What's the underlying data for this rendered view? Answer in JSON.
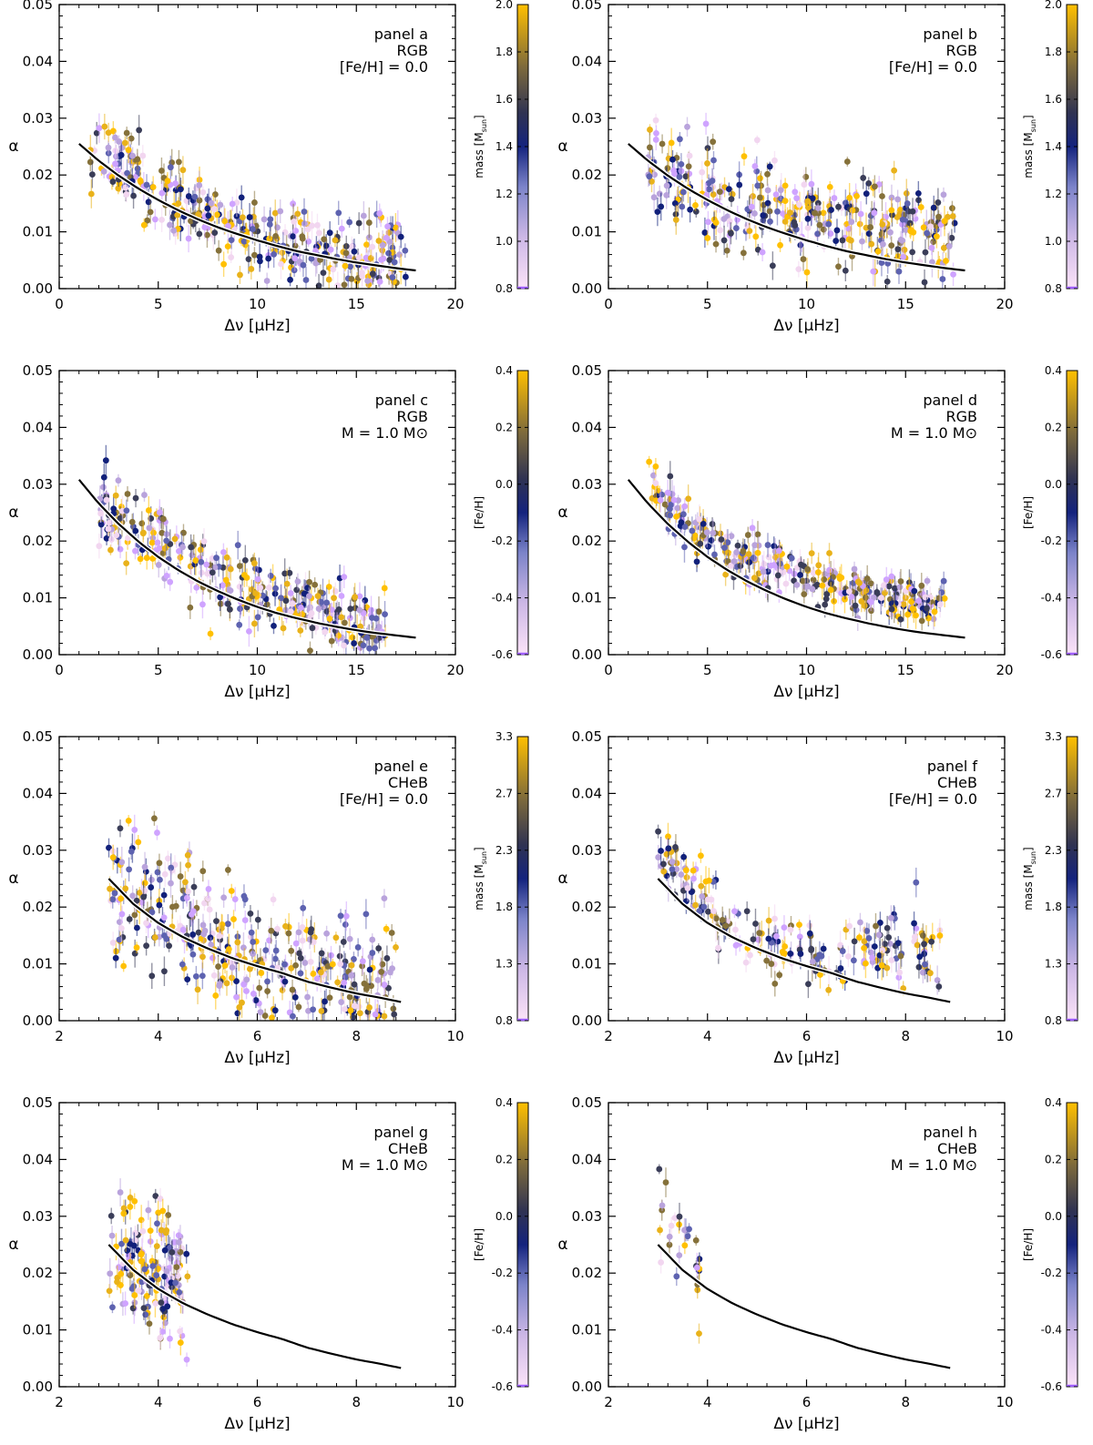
{
  "figure": {
    "colorscales": {
      "mass_low": {
        "label": "mass [M",
        "label_sub": "sun",
        "label_close": "]",
        "ticks": [
          "0.8",
          "1.0",
          "1.2",
          "1.4",
          "1.6",
          "1.8",
          "2.0"
        ],
        "min": 0.8,
        "max": 2.0
      },
      "mass_high": {
        "label": "mass [M",
        "label_sub": "sun",
        "label_close": "]",
        "ticks": [
          "0.8",
          "1.3",
          "1.8",
          "2.3",
          "2.7",
          "3.3"
        ],
        "min": 0.8,
        "max": 3.3
      },
      "feh": {
        "label": "[Fe/H]",
        "label_sub": "",
        "label_close": "",
        "ticks": [
          "-0.6",
          "-0.4",
          "-0.2",
          "0.0",
          "0.2",
          "0.4"
        ],
        "min": -0.6,
        "max": 0.4
      }
    },
    "colors": [
      "#cfa3ff",
      "#f2d6f0",
      "#b9a3dc",
      "#5d62b0",
      "#11207a",
      "#3a3d58",
      "#85713a",
      "#e9b21a",
      "#ffc000"
    ],
    "curve_color": "#000000"
  },
  "chart_data": [
    {
      "type": "scatter",
      "panel": "a",
      "annotation": [
        "panel a",
        "RGB",
        "[Fe/H] = 0.0"
      ],
      "xlabel": "Δν [μHz]",
      "ylabel": "α",
      "xlim": [
        0,
        20
      ],
      "ylim": [
        0,
        0.05
      ],
      "xticks": [
        "0",
        "5",
        "10",
        "15",
        "20"
      ],
      "yticks": [
        "0.00",
        "0.01",
        "0.02",
        "0.03",
        "0.04",
        "0.05"
      ],
      "colorscale": "mass_low",
      "fit_curve": {
        "x": [
          1.0,
          2.0,
          3.0,
          4.0,
          5.0,
          6.0,
          7.0,
          8.0,
          9.0,
          10.0,
          11.0,
          12.0,
          13.0,
          14.0,
          15.0,
          16.0,
          17.0,
          18.0
        ],
        "y": [
          0.0255,
          0.0225,
          0.0199,
          0.0176,
          0.0156,
          0.0138,
          0.0122,
          0.0108,
          0.0096,
          0.0085,
          0.0075,
          0.0066,
          0.0059,
          0.0052,
          0.0046,
          0.0041,
          0.0036,
          0.0032
        ]
      },
      "points": {
        "x_range": [
          1.5,
          17.5
        ],
        "n": 360,
        "ref_x": [
          2.5,
          4,
          6,
          8,
          10,
          12,
          14,
          16
        ],
        "ref_y": [
          0.023,
          0.02,
          0.015,
          0.012,
          0.0095,
          0.0075,
          0.006,
          0.005
        ],
        "scatter": 0.0035
      }
    },
    {
      "type": "scatter",
      "panel": "b",
      "annotation": [
        "panel b",
        "RGB",
        "[Fe/H] = 0.0"
      ],
      "xlabel": "Δν [μHz]",
      "ylabel": "α",
      "xlim": [
        0,
        20
      ],
      "ylim": [
        0,
        0.05
      ],
      "xticks": [
        "0",
        "5",
        "10",
        "15",
        "20"
      ],
      "yticks": [
        "0.00",
        "0.01",
        "0.02",
        "0.03",
        "0.04",
        "0.05"
      ],
      "colorscale": "mass_low",
      "fit_curve": {
        "x": [
          1.0,
          2.0,
          3.0,
          4.0,
          5.0,
          6.0,
          7.0,
          8.0,
          9.0,
          10.0,
          11.0,
          12.0,
          13.0,
          14.0,
          15.0,
          16.0,
          17.0,
          18.0
        ],
        "y": [
          0.0255,
          0.0225,
          0.0199,
          0.0176,
          0.0156,
          0.0138,
          0.0122,
          0.0108,
          0.0096,
          0.0085,
          0.0075,
          0.0066,
          0.0059,
          0.0052,
          0.0046,
          0.0041,
          0.0036,
          0.0032
        ]
      },
      "points": {
        "x_range": [
          2.0,
          17.5
        ],
        "n": 360,
        "ref_x": [
          2.5,
          4,
          6,
          8,
          10,
          12,
          14,
          16
        ],
        "ref_y": [
          0.02,
          0.018,
          0.016,
          0.0145,
          0.013,
          0.012,
          0.011,
          0.01
        ],
        "scatter": 0.004
      }
    },
    {
      "type": "scatter",
      "panel": "c",
      "annotation": [
        "panel c",
        "RGB",
        "M = 1.0 M⊙"
      ],
      "xlabel": "Δν [μHz]",
      "ylabel": "α",
      "xlim": [
        0,
        20
      ],
      "ylim": [
        0,
        0.05
      ],
      "xticks": [
        "0",
        "5",
        "10",
        "15",
        "20"
      ],
      "yticks": [
        "0.00",
        "0.01",
        "0.02",
        "0.03",
        "0.04",
        "0.05"
      ],
      "colorscale": "feh",
      "fit_curve": {
        "x": [
          1.0,
          2.0,
          3.0,
          4.0,
          5.0,
          6.0,
          7.0,
          8.0,
          9.0,
          10.0,
          11.0,
          12.0,
          13.0,
          14.0,
          15.0,
          16.0,
          17.0,
          18.0
        ],
        "y": [
          0.0308,
          0.0266,
          0.023,
          0.0199,
          0.0172,
          0.0149,
          0.0129,
          0.0112,
          0.0097,
          0.0084,
          0.0073,
          0.0064,
          0.0056,
          0.0049,
          0.0043,
          0.0038,
          0.0034,
          0.003
        ]
      },
      "points": {
        "x_range": [
          2.0,
          16.5
        ],
        "n": 330,
        "ref_x": [
          2.5,
          4,
          6,
          8,
          10,
          12,
          14,
          16
        ],
        "ref_y": [
          0.025,
          0.021,
          0.017,
          0.0135,
          0.011,
          0.009,
          0.007,
          0.0055
        ],
        "scatter": 0.003
      }
    },
    {
      "type": "scatter",
      "panel": "d",
      "annotation": [
        "panel d",
        "RGB",
        "M = 1.0 M⊙"
      ],
      "xlabel": "Δν [μHz]",
      "ylabel": "α",
      "xlim": [
        0,
        20
      ],
      "ylim": [
        0,
        0.05
      ],
      "xticks": [
        "0",
        "5",
        "10",
        "15",
        "20"
      ],
      "yticks": [
        "0.00",
        "0.01",
        "0.02",
        "0.03",
        "0.04",
        "0.05"
      ],
      "colorscale": "feh",
      "fit_curve": {
        "x": [
          1.0,
          2.0,
          3.0,
          4.0,
          5.0,
          6.0,
          7.0,
          8.0,
          9.0,
          10.0,
          11.0,
          12.0,
          13.0,
          14.0,
          15.0,
          16.0,
          17.0,
          18.0
        ],
        "y": [
          0.0308,
          0.0266,
          0.023,
          0.0199,
          0.0172,
          0.0149,
          0.0129,
          0.0112,
          0.0097,
          0.0084,
          0.0073,
          0.0064,
          0.0056,
          0.0049,
          0.0043,
          0.0038,
          0.0034,
          0.003
        ]
      },
      "points": {
        "x_range": [
          2.0,
          17.0
        ],
        "n": 330,
        "ref_x": [
          2.5,
          4,
          6,
          8,
          10,
          12,
          14,
          16
        ],
        "ref_y": [
          0.028,
          0.022,
          0.018,
          0.0155,
          0.0135,
          0.012,
          0.0105,
          0.0095
        ],
        "scatter": 0.0022
      }
    },
    {
      "type": "scatter",
      "panel": "e",
      "annotation": [
        "panel e",
        "CHeB",
        "[Fe/H] = 0.0"
      ],
      "xlabel": "Δν [μHz]",
      "ylabel": "α",
      "xlim": [
        2,
        10
      ],
      "ylim": [
        0,
        0.05
      ],
      "xticks": [
        "2",
        "4",
        "6",
        "8",
        "10"
      ],
      "yticks": [
        "0.00",
        "0.01",
        "0.02",
        "0.03",
        "0.04",
        "0.05"
      ],
      "colorscale": "mass_high",
      "fit_curve": {
        "x": [
          3.0,
          3.5,
          4.0,
          4.5,
          5.0,
          5.5,
          6.0,
          6.5,
          7.0,
          7.5,
          8.0,
          8.5,
          8.9
        ],
        "y": [
          0.025,
          0.0205,
          0.0172,
          0.0147,
          0.0127,
          0.011,
          0.0096,
          0.0084,
          0.0069,
          0.0058,
          0.0048,
          0.004,
          0.0033
        ]
      },
      "points": {
        "x_range": [
          3.0,
          8.8
        ],
        "n": 380,
        "ref_x": [
          3.2,
          3.8,
          4.3,
          4.8,
          5.5,
          6.5,
          7.5,
          8.5
        ],
        "ref_y": [
          0.021,
          0.022,
          0.02,
          0.014,
          0.011,
          0.009,
          0.008,
          0.007
        ],
        "scatter": 0.0055
      }
    },
    {
      "type": "scatter",
      "panel": "f",
      "annotation": [
        "panel f",
        "CHeB",
        "[Fe/H] = 0.0"
      ],
      "xlabel": "Δν [μHz]",
      "ylabel": "α",
      "xlim": [
        2,
        10
      ],
      "ylim": [
        0,
        0.05
      ],
      "xticks": [
        "2",
        "4",
        "6",
        "8",
        "10"
      ],
      "yticks": [
        "0.00",
        "0.01",
        "0.02",
        "0.03",
        "0.04",
        "0.05"
      ],
      "colorscale": "mass_high",
      "fit_curve": {
        "x": [
          3.0,
          3.5,
          4.0,
          4.5,
          5.0,
          5.5,
          6.0,
          6.5,
          7.0,
          7.5,
          8.0,
          8.5,
          8.9
        ],
        "y": [
          0.025,
          0.0205,
          0.0172,
          0.0147,
          0.0127,
          0.011,
          0.0096,
          0.0084,
          0.0069,
          0.0058,
          0.0048,
          0.004,
          0.0033
        ]
      },
      "points": {
        "x_range": [
          3.0,
          8.7
        ],
        "n": 220,
        "ref_x": [
          3.2,
          3.8,
          4.3,
          4.8,
          5.5,
          6.5,
          7.5,
          8.5
        ],
        "ref_y": [
          0.028,
          0.022,
          0.018,
          0.015,
          0.013,
          0.011,
          0.013,
          0.012
        ],
        "scatter": 0.003
      }
    },
    {
      "type": "scatter",
      "panel": "g",
      "annotation": [
        "panel g",
        "CHeB",
        "M = 1.0 M⊙"
      ],
      "xlabel": "Δν [μHz]",
      "ylabel": "α",
      "xlim": [
        2,
        10
      ],
      "ylim": [
        0,
        0.05
      ],
      "xticks": [
        "2",
        "4",
        "6",
        "8",
        "10"
      ],
      "yticks": [
        "0.00",
        "0.01",
        "0.02",
        "0.03",
        "0.04",
        "0.05"
      ],
      "colorscale": "feh",
      "fit_curve": {
        "x": [
          3.0,
          3.5,
          4.0,
          4.5,
          5.0,
          5.5,
          6.0,
          6.5,
          7.0,
          7.5,
          8.0,
          8.5,
          8.9
        ],
        "y": [
          0.025,
          0.0205,
          0.0172,
          0.0147,
          0.0127,
          0.011,
          0.0096,
          0.0084,
          0.0069,
          0.0058,
          0.0048,
          0.004,
          0.0033
        ]
      },
      "points": {
        "x_range": [
          3.0,
          4.6
        ],
        "n": 160,
        "ref_x": [
          3.0,
          3.4,
          3.7,
          4.0,
          4.3,
          4.6
        ],
        "ref_y": [
          0.022,
          0.022,
          0.021,
          0.021,
          0.02,
          0.018
        ],
        "scatter": 0.006
      }
    },
    {
      "type": "scatter",
      "panel": "h",
      "annotation": [
        "panel h",
        "CHeB",
        "M = 1.0 M⊙"
      ],
      "xlabel": "Δν [μHz]",
      "ylabel": "α",
      "xlim": [
        2,
        10
      ],
      "ylim": [
        0,
        0.05
      ],
      "xticks": [
        "2",
        "4",
        "6",
        "8",
        "10"
      ],
      "yticks": [
        "0.00",
        "0.01",
        "0.02",
        "0.03",
        "0.04",
        "0.05"
      ],
      "colorscale": "feh",
      "fit_curve": {
        "x": [
          3.0,
          3.5,
          4.0,
          4.5,
          5.0,
          5.5,
          6.0,
          6.5,
          7.0,
          7.5,
          8.0,
          8.5,
          8.9
        ],
        "y": [
          0.025,
          0.0205,
          0.0172,
          0.0147,
          0.0127,
          0.011,
          0.0096,
          0.0084,
          0.0069,
          0.0058,
          0.0048,
          0.004,
          0.0033
        ]
      },
      "points": {
        "x_range": [
          3.0,
          3.9
        ],
        "n": 28,
        "ref_x": [
          3.0,
          3.3,
          3.6,
          3.9
        ],
        "ref_y": [
          0.031,
          0.026,
          0.024,
          0.021
        ],
        "scatter": 0.005
      }
    }
  ]
}
